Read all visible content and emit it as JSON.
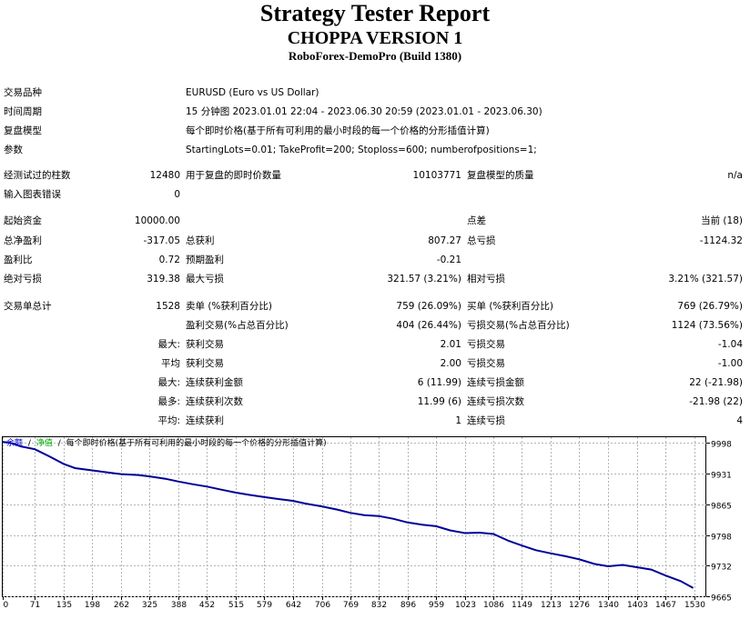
{
  "header": {
    "title": "Strategy Tester Report",
    "subtitle": "CHOPPA VERSION 1",
    "server": "RoboForex-DemoPro (Build 1380)"
  },
  "settings": {
    "symbol_label": "交易品种",
    "symbol_value": "EURUSD (Euro vs US Dollar)",
    "period_label": "时间周期",
    "period_value": "15 分钟图 2023.01.01 22:04 - 2023.06.30 20:59 (2023.01.01 - 2023.06.30)",
    "model_label": "复盘模型",
    "model_value": "每个即时价格(基于所有可利用的最小时段的每一个价格的分形插值计算)",
    "params_label": "参数",
    "params_value": "StartingLots=0.01; TakeProfit=200; Stoploss=600; numberofpositions=1;"
  },
  "stats": {
    "bars_label": "经测试过的柱数",
    "bars_value": "12480",
    "ticks_label": "用于复盘的即时价数量",
    "ticks_value": "10103771",
    "quality_label": "复盘模型的质量",
    "quality_value": "n/a",
    "errors_label": "输入图表错误",
    "errors_value": "0",
    "deposit_label": "起始资金",
    "deposit_value": "10000.00",
    "spread_label": "点差",
    "spread_value": "当前 (18)",
    "net_profit_label": "总净盈利",
    "net_profit_value": "-317.05",
    "gross_profit_label": "总获利",
    "gross_profit_value": "807.27",
    "gross_loss_label": "总亏损",
    "gross_loss_value": "-1124.32",
    "profit_factor_label": "盈利比",
    "profit_factor_value": "0.72",
    "expected_label": "预期盈利",
    "expected_value": "-0.21",
    "abs_dd_label": "绝对亏损",
    "abs_dd_value": "319.38",
    "max_dd_label": "最大亏损",
    "max_dd_value": "321.57 (3.21%)",
    "rel_dd_label": "相对亏损",
    "rel_dd_value": "3.21% (321.57)",
    "total_trades_label": "交易单总计",
    "total_trades_value": "1528",
    "short_label": "卖单 (%获利百分比)",
    "short_value": "759 (26.09%)",
    "long_label": "买单 (%获利百分比)",
    "long_value": "769 (26.79%)",
    "profit_trades_label": "盈利交易(%占总百分比)",
    "profit_trades_value": "404 (26.44%)",
    "loss_trades_label": "亏损交易(%占总百分比)",
    "loss_trades_value": "1124 (73.56%)",
    "largest_prefix": "最大:",
    "largest_profit_label": "获利交易",
    "largest_profit_value": "2.01",
    "largest_loss_label": "亏损交易",
    "largest_loss_value": "-1.04",
    "average_prefix": "平均",
    "avg_profit_label": "获利交易",
    "avg_profit_value": "2.00",
    "avg_loss_label": "亏损交易",
    "avg_loss_value": "-1.00",
    "maxcons_prefix": "最大:",
    "max_cons_wins_label": "连续获利金额",
    "max_cons_wins_value": "6 (11.99)",
    "max_cons_losses_label": "连续亏损金额",
    "max_cons_losses_value": "22 (-21.98)",
    "most_prefix": "最多:",
    "max_cons_profit_label": "连续获利次数",
    "max_cons_profit_value": "11.99 (6)",
    "max_cons_loss_label": "连续亏损次数",
    "max_cons_loss_value": "-21.98 (22)",
    "avgcons_prefix": "平均:",
    "avg_cons_wins_label": "连续获利",
    "avg_cons_wins_value": "1",
    "avg_cons_losses_label": "连续亏损",
    "avg_cons_losses_value": "4"
  },
  "chart_legend": {
    "balance": "余额",
    "sep1": "/",
    "equity": "净值",
    "sep2": "/",
    "text": "每个即时价格(基于所有可利用的最小时段的每一个价格的分形插值计算)"
  },
  "colors": {
    "balance_line": "#000099",
    "balance_legend": "#0000cc",
    "equity_legend": "#00aa00",
    "grid": "#b4b4b4"
  },
  "chart_data": {
    "type": "line",
    "title": "",
    "xlabel": "",
    "ylabel": "",
    "x_ticks": [
      0,
      71,
      135,
      198,
      262,
      325,
      388,
      452,
      515,
      579,
      642,
      706,
      769,
      832,
      896,
      959,
      1023,
      1086,
      1149,
      1213,
      1276,
      1340,
      1403,
      1467,
      1530
    ],
    "y_ticks": [
      9998,
      9931,
      9865,
      9798,
      9732,
      9665
    ],
    "xlim": [
      0,
      1557
    ],
    "ylim": [
      9665,
      10010
    ],
    "grid": true,
    "series": [
      {
        "x": [
          0,
          20,
          40,
          71,
          100,
          135,
          160,
          198,
          230,
          262,
          300,
          325,
          360,
          388,
          420,
          452,
          480,
          515,
          545,
          579,
          610,
          642,
          670,
          706,
          740,
          769,
          800,
          832,
          865,
          896,
          930,
          959,
          990,
          1023,
          1055,
          1086,
          1120,
          1149,
          1180,
          1213,
          1245,
          1276,
          1310,
          1340,
          1372,
          1403,
          1435,
          1467,
          1500,
          1528
        ],
        "y": [
          10000,
          9997,
          9990,
          9984,
          9970,
          9952,
          9943,
          9938,
          9934,
          9930,
          9928,
          9925,
          9920,
          9914,
          9908,
          9903,
          9897,
          9890,
          9885,
          9880,
          9876,
          9872,
          9866,
          9860,
          9853,
          9846,
          9841,
          9839,
          9833,
          9825,
          9820,
          9817,
          9808,
          9802,
          9803,
          9800,
          9785,
          9775,
          9765,
          9758,
          9752,
          9745,
          9735,
          9730,
          9733,
          9728,
          9723,
          9710,
          9698,
          9683
        ]
      }
    ]
  }
}
